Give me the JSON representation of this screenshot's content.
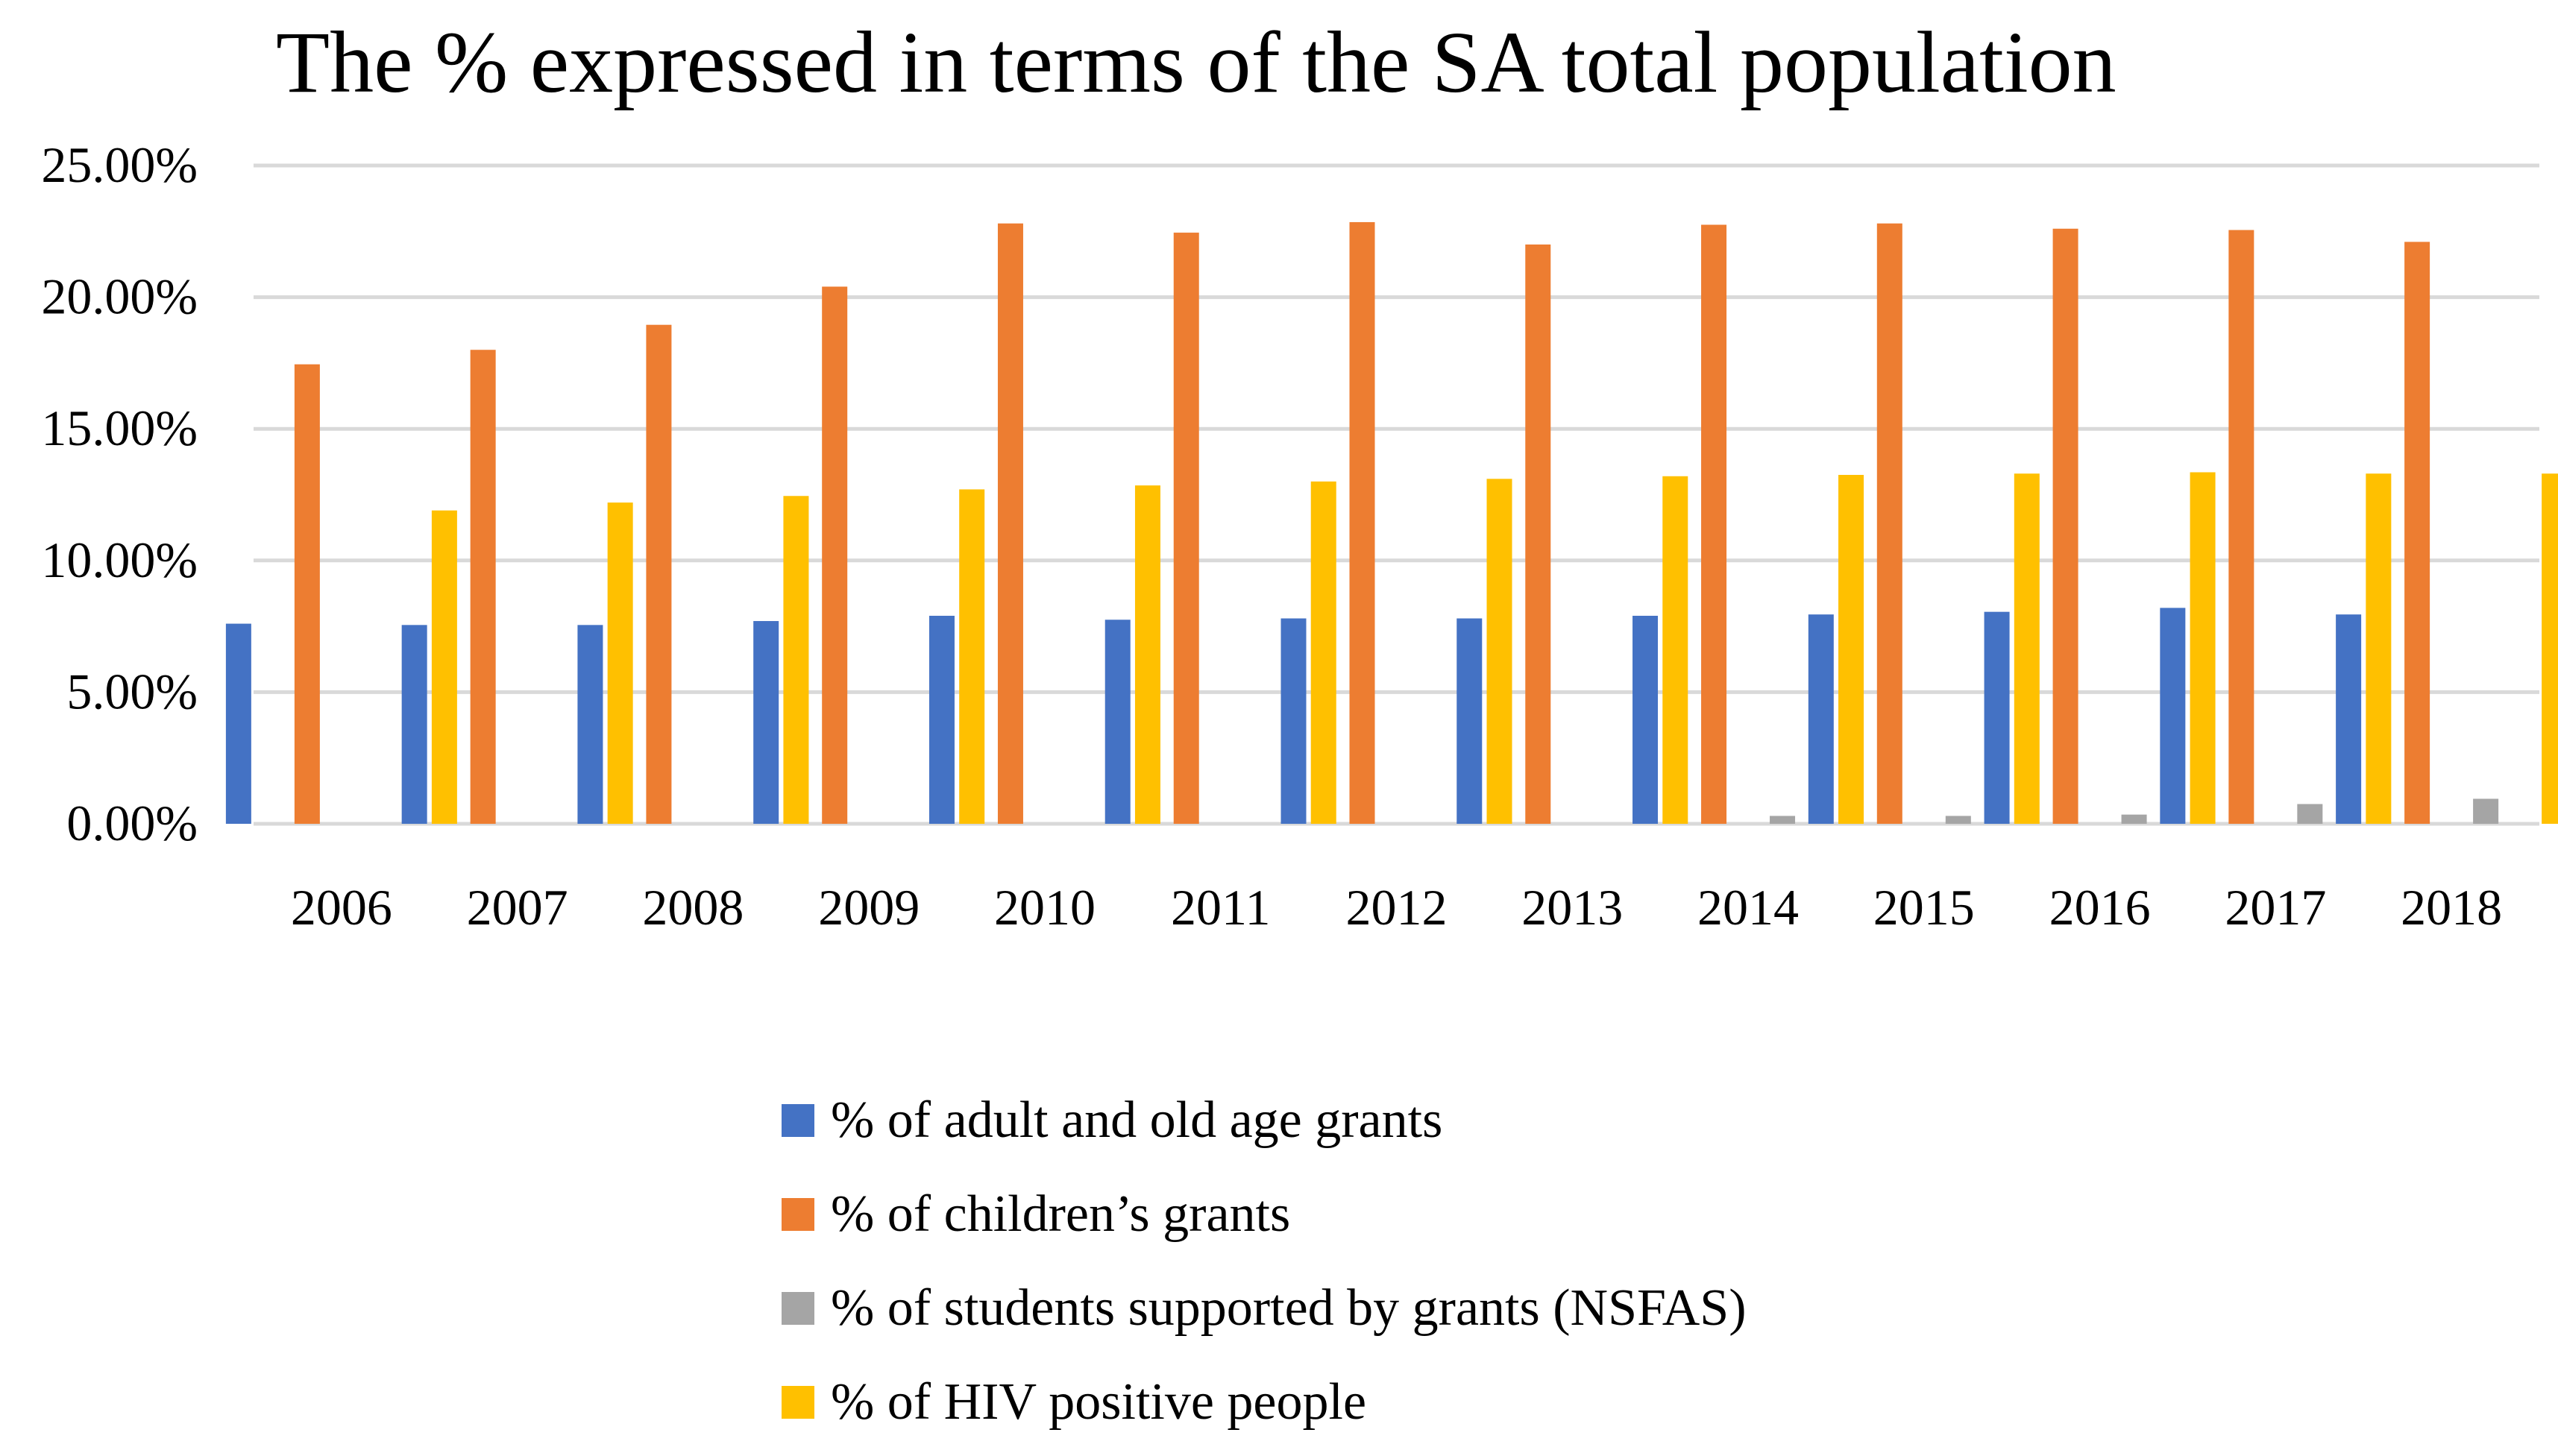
{
  "chart_data": {
    "type": "bar",
    "title": "The % expressed in terms of the SA total population",
    "xlabel": "",
    "ylabel": "",
    "ylim": [
      0,
      25
    ],
    "y_ticks": [
      "0.00%",
      "5.00%",
      "10.00%",
      "15.00%",
      "20.00%",
      "25.00%"
    ],
    "y_tick_values": [
      0,
      5,
      10,
      15,
      20,
      25
    ],
    "grid": true,
    "legend_position": "bottom",
    "categories": [
      "2006",
      "2007",
      "2008",
      "2009",
      "2010",
      "2011",
      "2012",
      "2013",
      "2014",
      "2015",
      "2016",
      "2017",
      "2018"
    ],
    "series": [
      {
        "name": "% of adult and old age grants",
        "color": "#4472C4",
        "values": [
          7.6,
          7.55,
          7.55,
          7.7,
          7.9,
          7.75,
          7.8,
          7.8,
          7.9,
          7.95,
          8.05,
          8.2,
          7.95
        ]
      },
      {
        "name": "% of children’s grants",
        "color": "#ED7D31",
        "values": [
          17.45,
          18.0,
          18.95,
          20.4,
          22.8,
          22.45,
          22.85,
          22.0,
          22.75,
          22.8,
          22.6,
          22.55,
          22.1
        ]
      },
      {
        "name": "% of students supported by grants (NSFAS)",
        "color": "#A5A5A5",
        "values": [
          0,
          0,
          0,
          0,
          0,
          0,
          0,
          0,
          0.3,
          0.3,
          0.35,
          0.75,
          0.95
        ]
      },
      {
        "name": "% of HIV positive people",
        "color": "#FFC000",
        "values": [
          11.9,
          12.2,
          12.45,
          12.7,
          12.85,
          13.0,
          13.1,
          13.2,
          13.25,
          13.3,
          13.35,
          13.3,
          13.3
        ]
      }
    ]
  },
  "colors": {
    "gridline": "#D9D9D9",
    "background": "#FFFFFF"
  }
}
